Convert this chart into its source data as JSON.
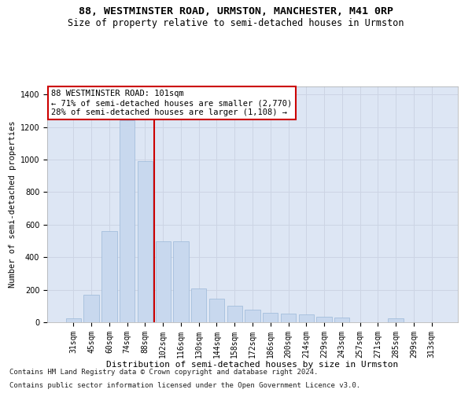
{
  "title1": "88, WESTMINSTER ROAD, URMSTON, MANCHESTER, M41 0RP",
  "title2": "Size of property relative to semi-detached houses in Urmston",
  "xlabel": "Distribution of semi-detached houses by size in Urmston",
  "ylabel": "Number of semi-detached properties",
  "footnote1": "Contains HM Land Registry data © Crown copyright and database right 2024.",
  "footnote2": "Contains public sector information licensed under the Open Government Licence v3.0.",
  "annotation_line1": "88 WESTMINSTER ROAD: 101sqm",
  "annotation_line2": "← 71% of semi-detached houses are smaller (2,770)",
  "annotation_line3": "28% of semi-detached houses are larger (1,108) →",
  "bar_color": "#c8d8ee",
  "bar_edgecolor": "#9ab8d8",
  "redline_color": "#cc0000",
  "categories": [
    "31sqm",
    "45sqm",
    "60sqm",
    "74sqm",
    "88sqm",
    "102sqm",
    "116sqm",
    "130sqm",
    "144sqm",
    "158sqm",
    "172sqm",
    "186sqm",
    "200sqm",
    "214sqm",
    "229sqm",
    "243sqm",
    "257sqm",
    "271sqm",
    "285sqm",
    "299sqm",
    "313sqm"
  ],
  "values": [
    25,
    170,
    560,
    1240,
    990,
    500,
    500,
    210,
    145,
    100,
    75,
    60,
    55,
    50,
    35,
    30,
    0,
    0,
    25,
    0,
    0
  ],
  "ylim": [
    0,
    1450
  ],
  "yticks": [
    0,
    200,
    400,
    600,
    800,
    1000,
    1200,
    1400
  ],
  "grid_color": "#ccd4e4",
  "bg_color": "#dde6f4",
  "annotation_box_facecolor": "#ffffff",
  "annotation_box_edgecolor": "#cc0000",
  "title1_fontsize": 9.5,
  "title2_fontsize": 8.5,
  "xlabel_fontsize": 8,
  "ylabel_fontsize": 7.5,
  "tick_fontsize": 7,
  "annot_fontsize": 7.5,
  "footnote_fontsize": 6.5,
  "redline_x": 4.5
}
